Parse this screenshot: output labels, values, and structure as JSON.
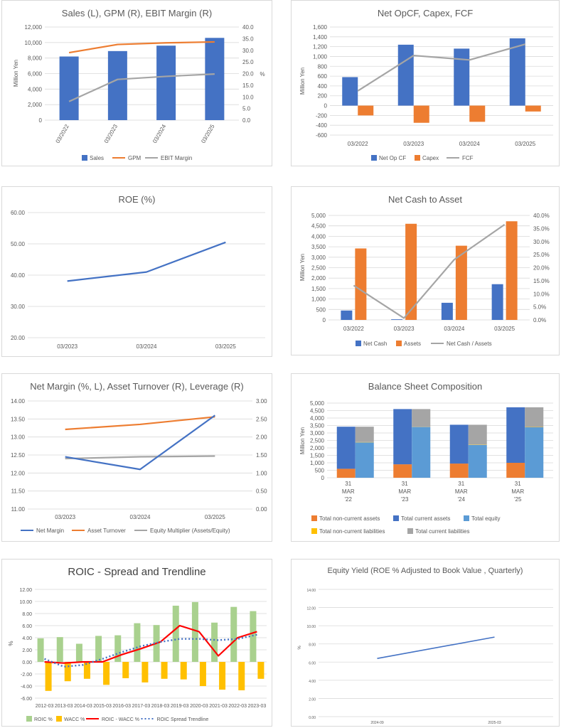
{
  "colors": {
    "blue": "#4472c4",
    "orange": "#ed7d31",
    "gray": "#a5a5a5",
    "yellow": "#ffc000",
    "lightblue": "#5b9bd5",
    "green": "#a9d18e",
    "red": "#ff0000",
    "grid": "#d9d9d9",
    "text": "#595959"
  },
  "chart_data": [
    {
      "type": "bar",
      "title": "Sales (L), GPM (R), EBIT Margin (R)",
      "categories": [
        "03/2022",
        "03/2023",
        "03/2024",
        "03/2025"
      ],
      "ylabel": "Million Yen",
      "y2label": "%",
      "ylim": [
        0,
        12000
      ],
      "yticks": [
        "0",
        "2,000",
        "4,000",
        "6,000",
        "8,000",
        "10,000",
        "12,000"
      ],
      "y2lim": [
        0,
        40
      ],
      "y2ticks": [
        "0.0",
        "5.0",
        "10.0",
        "15.0",
        "20.0",
        "25.0",
        "30.0",
        "35.0",
        "40.0"
      ],
      "series": [
        {
          "name": "Sales",
          "kind": "bar",
          "axis": "left",
          "values": [
            8200,
            8900,
            9600,
            10600
          ]
        },
        {
          "name": "GPM",
          "kind": "line",
          "axis": "right",
          "values": [
            29.0,
            32.5,
            33.2,
            33.6
          ]
        },
        {
          "name": "EBIT Margin",
          "kind": "line",
          "axis": "right",
          "values": [
            8.0,
            17.5,
            18.8,
            19.8
          ]
        }
      ],
      "legend": "bottom",
      "grid": true
    },
    {
      "type": "bar",
      "title": "Net OpCF, Capex, FCF",
      "categories": [
        "03/2022",
        "03/2023",
        "03/2024",
        "03/2025"
      ],
      "ylabel": "Million Yen",
      "ylim": [
        -600,
        1600
      ],
      "yticks": [
        "-600",
        "-400",
        "-200",
        "0",
        "200",
        "400",
        "600",
        "800",
        "1,000",
        "1,200",
        "1,400",
        "1,600"
      ],
      "series": [
        {
          "name": "Net Op CF",
          "kind": "bar",
          "values": [
            580,
            1240,
            1160,
            1370
          ]
        },
        {
          "name": "Capex",
          "kind": "bar",
          "values": [
            -200,
            -350,
            -330,
            -120
          ]
        },
        {
          "name": "FCF",
          "kind": "line",
          "values": [
            300,
            1020,
            930,
            1250
          ]
        }
      ],
      "legend": "bottom",
      "grid": true
    },
    {
      "type": "line",
      "title": "ROE (%)",
      "categories": [
        "03/2023",
        "03/2024",
        "03/2025"
      ],
      "ylim": [
        20,
        60
      ],
      "yticks": [
        "20.00",
        "30.00",
        "40.00",
        "50.00",
        "60.00"
      ],
      "series": [
        {
          "name": "",
          "values": [
            38.1,
            41.0,
            50.5
          ]
        }
      ],
      "grid": true
    },
    {
      "type": "bar",
      "title": "Net Cash to Asset",
      "categories": [
        "03/2022",
        "03/2023",
        "03/2024",
        "03/2025"
      ],
      "ylabel": "Million Yen",
      "ylim": [
        0,
        5000
      ],
      "yticks": [
        "0",
        "500",
        "1,000",
        "1,500",
        "2,000",
        "2,500",
        "3,000",
        "3,500",
        "4,000",
        "4,500",
        "5,000"
      ],
      "y2lim": [
        0,
        40
      ],
      "y2ticks": [
        "0.0%",
        "5.0%",
        "10.0%",
        "15.0%",
        "20.0%",
        "25.0%",
        "30.0%",
        "35.0%",
        "40.0%"
      ],
      "series": [
        {
          "name": "Net Cash",
          "kind": "bar",
          "axis": "left",
          "values": [
            450,
            30,
            820,
            1710
          ]
        },
        {
          "name": "Assets",
          "kind": "bar",
          "axis": "left",
          "values": [
            3420,
            4600,
            3550,
            4720
          ]
        },
        {
          "name": "Net Cash / Assets",
          "kind": "line",
          "axis": "right",
          "values": [
            13.2,
            0.7,
            23.1,
            36.5
          ]
        }
      ],
      "legend": "bottom",
      "grid": true
    },
    {
      "type": "line",
      "title": "Net Margin (%, L), Asset Turnover (R), Leverage (R)",
      "categories": [
        "03/2023",
        "03/2024",
        "03/2025"
      ],
      "ylim": [
        11,
        14
      ],
      "yticks": [
        "11.00",
        "11.50",
        "12.00",
        "12.50",
        "13.00",
        "13.50",
        "14.00"
      ],
      "y2lim": [
        0,
        3
      ],
      "y2ticks": [
        "0.00",
        "0.50",
        "1.00",
        "1.50",
        "2.00",
        "2.50",
        "3.00"
      ],
      "series": [
        {
          "name": "Net Margin",
          "axis": "left",
          "values": [
            12.45,
            12.1,
            13.6
          ]
        },
        {
          "name": "Asset Turnover",
          "axis": "right",
          "values": [
            2.21,
            2.35,
            2.56
          ]
        },
        {
          "name": "Equity Multiplier (Assets/Equity)",
          "axis": "right",
          "values": [
            1.4,
            1.45,
            1.47
          ]
        }
      ],
      "legend": "bottom",
      "grid": true
    },
    {
      "type": "bar",
      "title": "Balance Sheet Composition",
      "categories": [
        "31 MAR '22",
        "31 MAR '23",
        "31 MAR '24",
        "31 MAR '25"
      ],
      "category_lines": [
        [
          "31",
          "MAR",
          "'22"
        ],
        [
          "31",
          "MAR",
          "'23"
        ],
        [
          "31",
          "MAR",
          "'24"
        ],
        [
          "31",
          "MAR",
          "'25"
        ]
      ],
      "ylabel": "Million Yen",
      "ylim": [
        0,
        5000
      ],
      "yticks": [
        "0",
        "500",
        "1,000",
        "1,500",
        "2,000",
        "2,500",
        "3,000",
        "3,500",
        "4,000",
        "4,500",
        "5,000"
      ],
      "stacked": true,
      "series": [
        {
          "name": "Total non-current assets",
          "stack": "assets",
          "values": [
            600,
            900,
            950,
            1000
          ]
        },
        {
          "name": "Total current assets",
          "stack": "assets",
          "values": [
            2820,
            3700,
            2600,
            3720
          ]
        },
        {
          "name": "Total equity",
          "stack": "liabilities",
          "values": [
            2370,
            3400,
            2200,
            3380
          ]
        },
        {
          "name": "Total non-current liabilities",
          "stack": "liabilities",
          "values": [
            20,
            10,
            20,
            20
          ]
        },
        {
          "name": "Total current liabilities",
          "stack": "liabilities",
          "values": [
            1030,
            1190,
            1330,
            1320
          ]
        }
      ],
      "legend": "bottom",
      "grid": true
    },
    {
      "type": "bar",
      "title": "ROIC - Spread and Trendline",
      "categories": [
        "2012-03",
        "2013-03",
        "2014-03",
        "2015-03",
        "2016-03",
        "2017-03",
        "2018-03",
        "2019-03",
        "2020-03",
        "2021-03",
        "2022-03",
        "2023-03"
      ],
      "ylabel": "%",
      "ylim": [
        -6,
        12
      ],
      "yticks": [
        "-6.00",
        "-4.00",
        "-2.00",
        "0.00",
        "2.00",
        "4.00",
        "6.00",
        "8.00",
        "10.00",
        "12.00"
      ],
      "series": [
        {
          "name": "ROIC %",
          "kind": "bar",
          "values": [
            3.9,
            4.1,
            3.0,
            4.3,
            4.4,
            6.4,
            6.1,
            9.3,
            9.9,
            6.5,
            9.1,
            8.4
          ]
        },
        {
          "name": "WACC %",
          "kind": "bar",
          "values": [
            -4.8,
            -3.2,
            -2.8,
            -3.8,
            -2.7,
            -3.4,
            -2.8,
            -2.9,
            -4.0,
            -4.6,
            -4.7,
            -2.8
          ]
        },
        {
          "name": "ROIC - WACC %",
          "kind": "line",
          "values": [
            0.0,
            -0.2,
            0.0,
            0.0,
            1.2,
            2.2,
            3.3,
            6.0,
            5.0,
            1.0,
            4.0,
            5.0
          ]
        },
        {
          "name": "ROIC Spread Trendline",
          "kind": "trend",
          "values": [
            0.5,
            -0.8,
            -0.5,
            0.5,
            1.6,
            2.6,
            3.3,
            3.8,
            3.8,
            3.6,
            3.8,
            4.5
          ]
        }
      ],
      "legend": "bottom",
      "grid": true
    },
    {
      "type": "line",
      "title": "Equity Yield (ROE % Adjusted to Book Value , Quarterly)",
      "categories": [
        "2024-09",
        "2025-03"
      ],
      "ylabel": "%",
      "ylim": [
        0,
        14
      ],
      "yticks": [
        "0.00",
        "2.00",
        "4.00",
        "6.00",
        "8.00",
        "10.00",
        "12.00",
        "14.00"
      ],
      "series": [
        {
          "name": "",
          "values": [
            6.4,
            8.75
          ]
        }
      ],
      "grid": true
    }
  ]
}
